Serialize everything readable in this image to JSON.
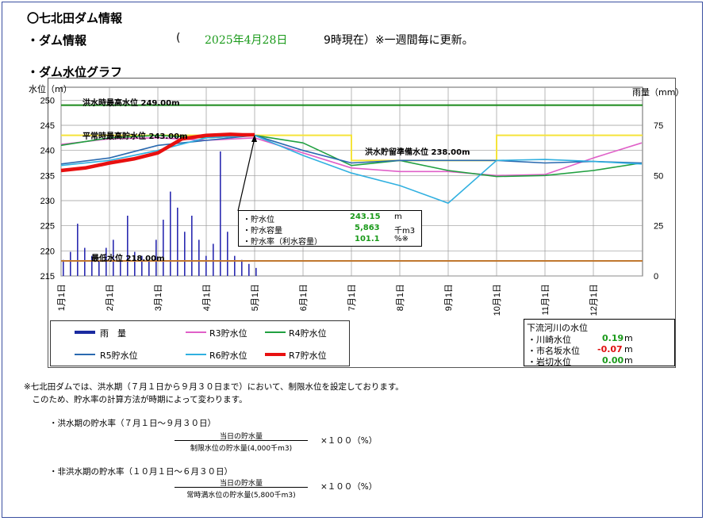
{
  "header": {
    "title": "〇七北田ダム情報",
    "info_label": "・ダム情報",
    "paren_open": "(",
    "date": "2025年4月28日",
    "time_note": "9時現在）※一週間毎に更新。",
    "graph_label": "・ダム水位グラフ"
  },
  "chart_data": {
    "type": "line",
    "y_left_label": "水位（m）",
    "y_right_label": "雨量（mm）",
    "y_left_ticks": [
      250,
      245,
      240,
      235,
      230,
      225,
      220,
      215
    ],
    "y_left_range": [
      215,
      251
    ],
    "y_right_ticks": [
      75,
      50,
      25,
      0
    ],
    "y_right_range": [
      0,
      90
    ],
    "x_ticks": [
      "1月1日",
      "2月1日",
      "3月1日",
      "4月1日",
      "5月1日",
      "6月1日",
      "7月1日",
      "8月1日",
      "9月1日",
      "10月1日",
      "11月1日",
      "12月1日"
    ],
    "reference_lines": [
      {
        "label": "洪水時最高水位 249.00m",
        "value": 249.0,
        "color": "#1a8a1a"
      },
      {
        "label": "平常時最高貯水位 243.00m",
        "value": 243.0,
        "color": "#f5e43a"
      },
      {
        "label": "洪水貯留準備水位 238.00m",
        "value": 238.0,
        "color": "#f5e43a"
      },
      {
        "label": "最低水位 218.00m",
        "value": 218.0,
        "color": "#c07830"
      }
    ],
    "legend": [
      "雨　量",
      "R3貯水位",
      "R4貯水位",
      "R5貯水位",
      "R6貯水位",
      "R7貯水位"
    ],
    "series": [
      {
        "name": "R3貯水位",
        "color": "#e060c8",
        "width": 1.6,
        "months": [
          0,
          1,
          2,
          3,
          4,
          5,
          6,
          7,
          8,
          9,
          10,
          11,
          12
        ],
        "values": [
          241.2,
          242.3,
          242.5,
          242.0,
          242.5,
          239.5,
          236.5,
          235.8,
          235.8,
          235.0,
          235.2,
          238.5,
          241.5
        ]
      },
      {
        "name": "R4貯水位",
        "color": "#20a040",
        "width": 1.6,
        "months": [
          0,
          1,
          2,
          3,
          4,
          5,
          6,
          7,
          8,
          9,
          10,
          11,
          12
        ],
        "values": [
          241.0,
          242.5,
          243.0,
          242.5,
          243.0,
          241.5,
          237.0,
          238.0,
          236.0,
          234.8,
          235.0,
          236.0,
          237.5
        ]
      },
      {
        "name": "R5貯水位",
        "color": "#2a6ab0",
        "width": 1.6,
        "months": [
          0,
          1,
          2,
          3,
          4,
          5,
          6,
          7,
          8,
          9,
          10,
          11,
          12
        ],
        "values": [
          237.3,
          238.5,
          241.0,
          242.0,
          243.0,
          240.0,
          237.5,
          238.0,
          238.0,
          238.0,
          237.5,
          237.8,
          237.5
        ]
      },
      {
        "name": "R6貯水位",
        "color": "#30b0e0",
        "width": 1.6,
        "months": [
          0,
          1,
          2,
          3,
          4,
          5,
          6,
          7,
          8,
          9,
          10,
          11,
          12
        ],
        "values": [
          237.0,
          238.0,
          240.0,
          242.5,
          243.0,
          239.0,
          235.5,
          233.0,
          229.5,
          238.0,
          238.2,
          237.8,
          237.3
        ]
      },
      {
        "name": "R7貯水位",
        "color": "#e81010",
        "width": 4.5,
        "months": [
          0,
          0.5,
          1,
          1.5,
          2,
          2.5,
          3,
          3.5,
          3.75,
          4
        ],
        "values": [
          236.0,
          236.5,
          237.5,
          238.3,
          239.5,
          242.3,
          243.0,
          243.2,
          243.1,
          243.1
        ]
      }
    ],
    "rain_mm": [
      8,
      12,
      26,
      14,
      10,
      8,
      14,
      18,
      8,
      30,
      12,
      10,
      8,
      18,
      28,
      42,
      34,
      22,
      30,
      18,
      10,
      16,
      62,
      22,
      10,
      8,
      6,
      4
    ]
  },
  "info": {
    "row1_label": "・貯水位",
    "row1_value": "243.15",
    "row1_unit": "m",
    "row2_label": "・貯水容量",
    "row2_value": "5,863",
    "row2_unit": "千m3",
    "row3_label": "・貯水率（利水容量）",
    "row3_value": "101.1",
    "row3_unit": "%※"
  },
  "river": {
    "title": "下流河川の水位",
    "rows": [
      {
        "label": "・川崎水位",
        "value": "0.19",
        "unit": "m",
        "color": "#1a9a1a"
      },
      {
        "label": "・市名坂水位",
        "value": "-0.07",
        "unit": "m",
        "color": "#e01010"
      },
      {
        "label": "・岩切水位",
        "value": "0.00",
        "unit": "m",
        "color": "#1a9a1a"
      }
    ]
  },
  "notes": {
    "line1": "※七北田ダムでは、洪水期（７月１日から９月３０日まで）において、制限水位を設定しております。",
    "line2": "　このため、貯水率の計算方法が時期によって変わります。",
    "flood_title": "・洪水期の貯水率（７月１日～９月３０日）",
    "flood_num": "当日の貯水量",
    "flood_den": "制限水位の貯水量(4,000千m3)",
    "times": "×１００（%）",
    "nonflood_title": "・非洪水期の貯水率（１０月１日～６月３０日）",
    "nonflood_num": "当日の貯水量",
    "nonflood_den": "常時満水位の貯水量(5,800千m3)"
  }
}
